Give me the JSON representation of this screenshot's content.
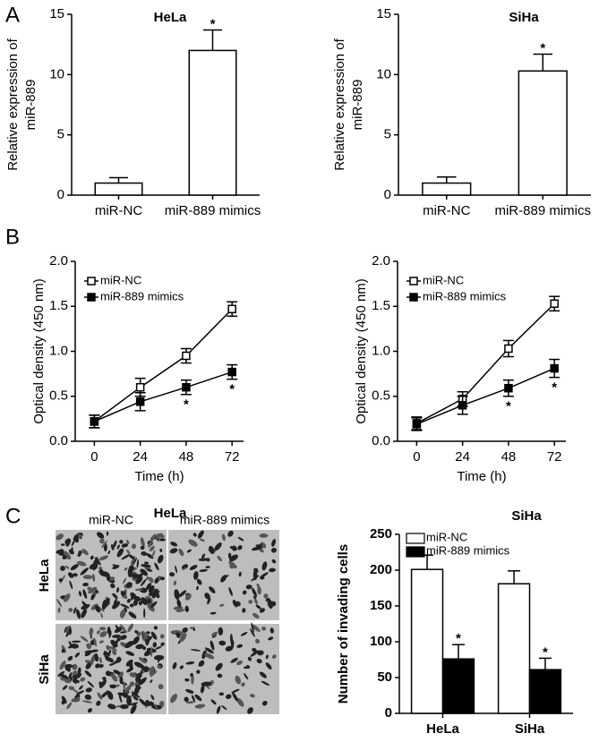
{
  "panel_labels": [
    "A",
    "B",
    "C"
  ],
  "image_panel": {
    "title": "HeLa",
    "columns": [
      "miR-NC",
      "miR-889 mimics"
    ],
    "rows": [
      "HeLa",
      "SiHa"
    ]
  },
  "chart_data": [
    {
      "type": "bar",
      "title": "HeLa",
      "ylabel": [
        "Relative expression of",
        "miR-889"
      ],
      "categories": [
        "miR-NC",
        "miR-889 mimics"
      ],
      "values": [
        1,
        12
      ],
      "errors": [
        0.45,
        1.7
      ],
      "markers": [
        null,
        "*"
      ],
      "color": "#ffffff",
      "ylim": [
        0,
        15
      ],
      "yticks": [
        0,
        5,
        10,
        15
      ]
    },
    {
      "type": "bar",
      "title": "SiHa",
      "ylabel": [
        "Relative expression of",
        "miR-889"
      ],
      "categories": [
        "miR-NC",
        "miR-889 mimics"
      ],
      "values": [
        1,
        10.3
      ],
      "errors": [
        0.5,
        1.4
      ],
      "markers": [
        null,
        "*"
      ],
      "color": "#ffffff",
      "ylim": [
        0,
        15
      ],
      "yticks": [
        0,
        5,
        10,
        15
      ]
    },
    {
      "type": "line",
      "ylabel": [
        "Optical density (450 nm)"
      ],
      "xlabel": "Time (h)",
      "x": [
        0,
        24,
        48,
        72
      ],
      "xlim": [
        -10,
        78
      ],
      "xticks": [
        0,
        24,
        48,
        72
      ],
      "ylim": [
        0,
        2
      ],
      "yticks": [
        {
          "value": 0,
          "label": "0.0"
        },
        0.5,
        {
          "value": 1,
          "label": "1.0"
        },
        1.5,
        {
          "value": 2,
          "label": "2.0"
        }
      ],
      "legend": "upper-left",
      "series": [
        {
          "name": "miR-NC",
          "color": "#000000",
          "fill": "#ffffff",
          "values": [
            0.22,
            0.6,
            0.95,
            1.47
          ],
          "errors": [
            0.07,
            0.1,
            0.08,
            0.08
          ],
          "markers": [
            null,
            null,
            null,
            null
          ]
        },
        {
          "name": "miR-889 mimics",
          "color": "#000000",
          "fill": "#000000",
          "values": [
            0.22,
            0.44,
            0.6,
            0.77
          ],
          "errors": [
            0.07,
            0.1,
            0.08,
            0.08
          ],
          "markers": [
            null,
            null,
            "*",
            "*"
          ]
        }
      ]
    },
    {
      "type": "line",
      "ylabel": [
        "Optical density (450 nm)"
      ],
      "xlabel": "Time (h)",
      "x": [
        0,
        24,
        48,
        72
      ],
      "xlim": [
        -10,
        78
      ],
      "xticks": [
        0,
        24,
        48,
        72
      ],
      "ylim": [
        0,
        2
      ],
      "yticks": [
        {
          "value": 0,
          "label": "0.0"
        },
        0.5,
        {
          "value": 1,
          "label": "1.0"
        },
        1.5,
        {
          "value": 2,
          "label": "2.0"
        }
      ],
      "legend": "upper-left",
      "series": [
        {
          "name": "miR-NC",
          "color": "#000000",
          "fill": "#ffffff",
          "values": [
            0.2,
            0.47,
            1.03,
            1.53
          ],
          "errors": [
            0.07,
            0.08,
            0.09,
            0.08
          ],
          "markers": [
            null,
            null,
            null,
            null
          ]
        },
        {
          "name": "miR-889 mimics",
          "color": "#000000",
          "fill": "#000000",
          "values": [
            0.19,
            0.4,
            0.59,
            0.81
          ],
          "errors": [
            0.07,
            0.1,
            0.09,
            0.1
          ],
          "markers": [
            null,
            null,
            "*",
            "*"
          ]
        }
      ]
    },
    {
      "type": "bar",
      "title": "SiHa",
      "ylabel": [
        "Number of invading cells"
      ],
      "categories": [
        "HeLa",
        "SiHa"
      ],
      "ylim": [
        0,
        250
      ],
      "yticks": [
        0,
        50,
        100,
        150,
        200,
        250
      ],
      "legend": "upper-left",
      "series": [
        {
          "name": "miR-NC",
          "color": "#ffffff",
          "values": [
            201,
            181
          ],
          "errors": [
            20,
            18
          ],
          "markers": [
            null,
            null
          ]
        },
        {
          "name": "miR-889 mimics",
          "color": "#000000",
          "values": [
            76,
            61
          ],
          "errors": [
            20,
            16
          ],
          "markers": [
            "*",
            "*"
          ]
        }
      ]
    }
  ]
}
